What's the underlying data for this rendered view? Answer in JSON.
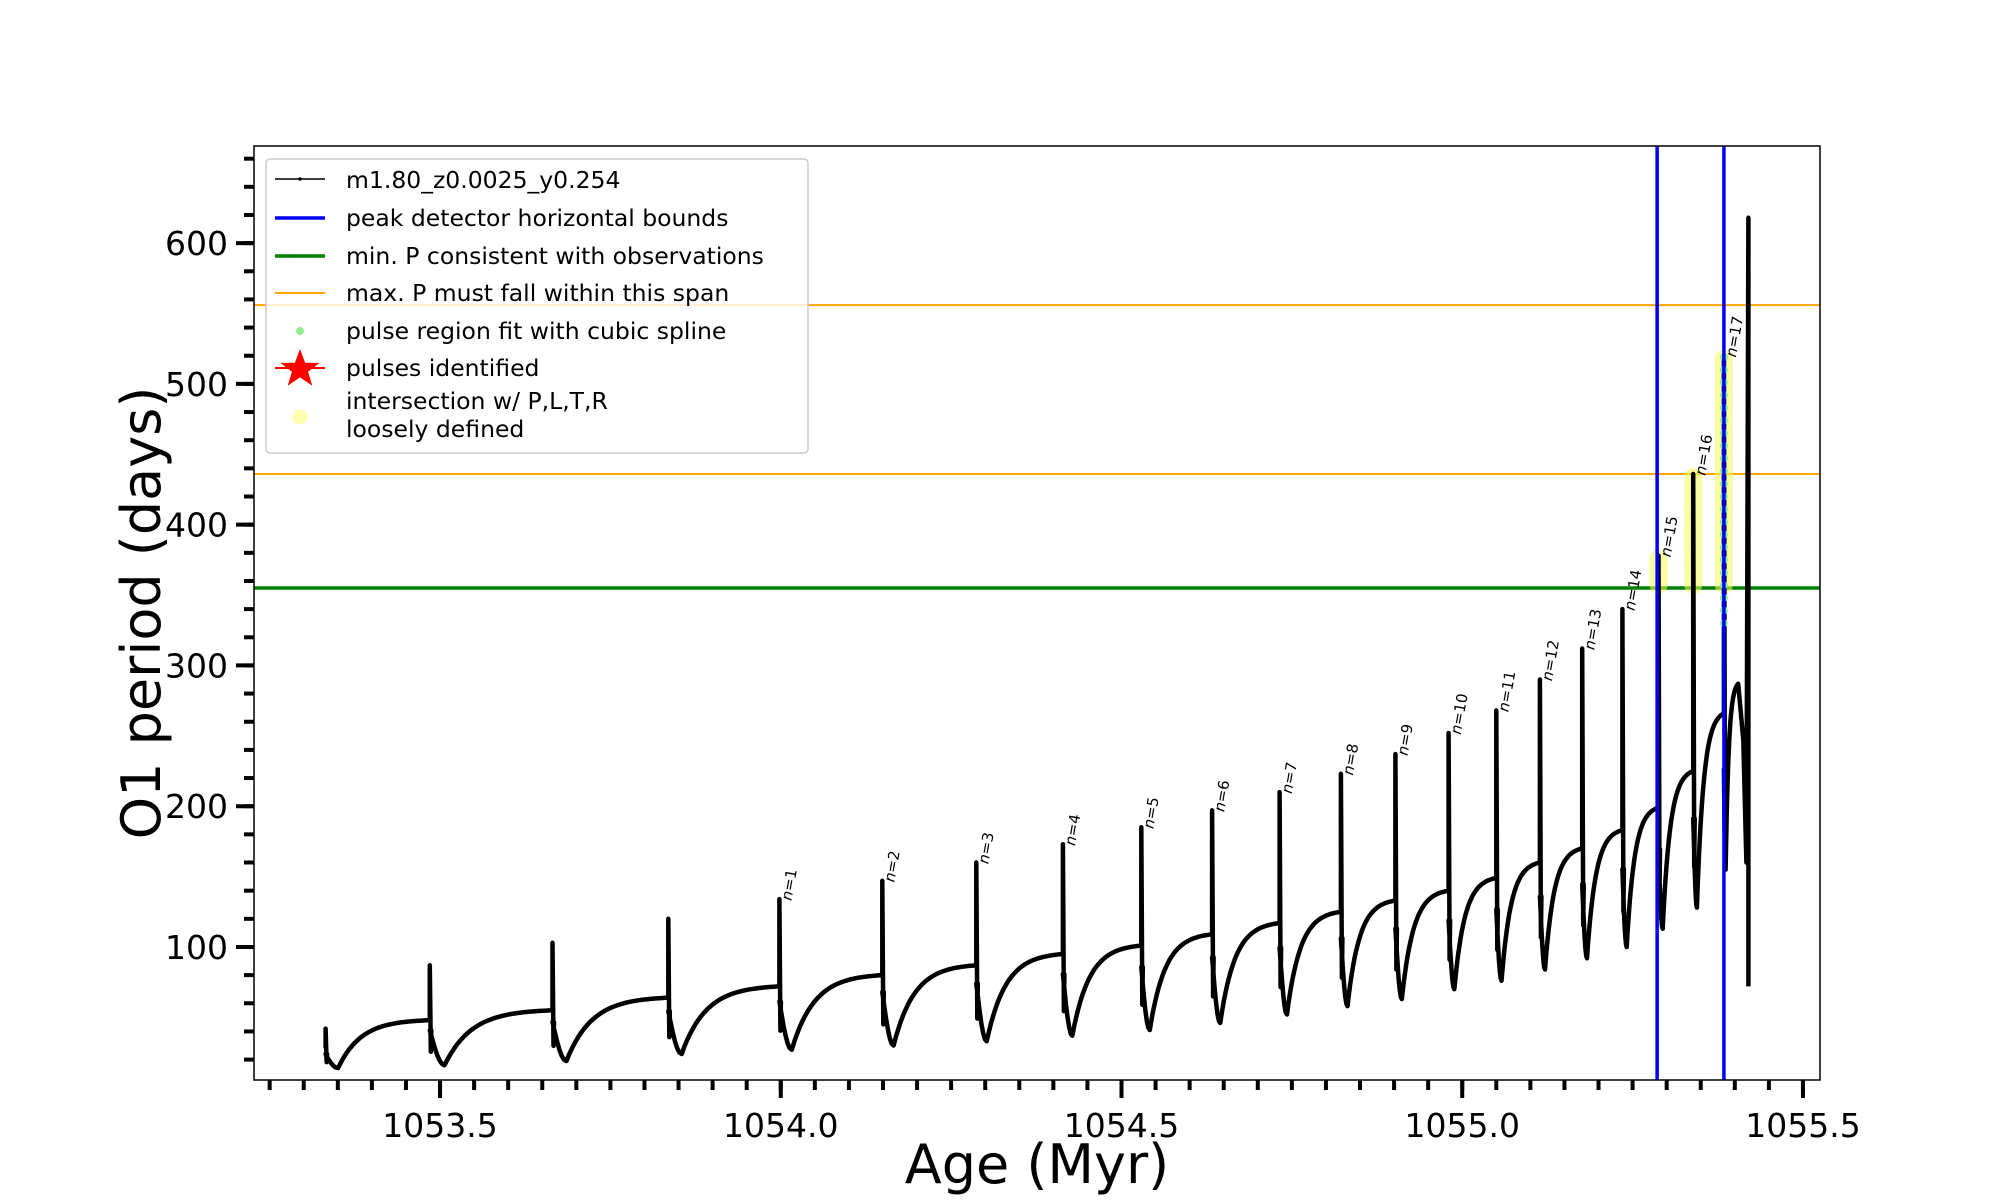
{
  "chart_data": {
    "type": "line",
    "title": "",
    "xlabel": "Age (Myr)",
    "ylabel": "O1 period (days)",
    "xlim": [
      1053.227,
      1055.525
    ],
    "ylim": [
      5.5,
      669
    ],
    "grid": false,
    "x_ticks": [
      {
        "value": 1053.5,
        "label": "1053.5"
      },
      {
        "value": 1054.0,
        "label": "1054.0"
      },
      {
        "value": 1054.5,
        "label": "1054.5"
      },
      {
        "value": 1055.0,
        "label": "1055.0"
      },
      {
        "value": 1055.5,
        "label": "1055.5"
      }
    ],
    "x_minor_step": 0.05,
    "y_ticks": [
      {
        "value": 100,
        "label": "100"
      },
      {
        "value": 200,
        "label": "200"
      },
      {
        "value": 300,
        "label": "300"
      },
      {
        "value": 400,
        "label": "400"
      },
      {
        "value": 500,
        "label": "500"
      },
      {
        "value": 600,
        "label": "600"
      }
    ],
    "y_minor_step": 20,
    "series_name": "m1.80_z0.0025_y0.254",
    "track_start": {
      "age": 1053.332,
      "period": 16
    },
    "pulses": [
      {
        "age": 1053.332,
        "peak": 42,
        "pre": 28,
        "trough": 14,
        "label": ""
      },
      {
        "age": 1053.485,
        "peak": 87,
        "pre": 48,
        "trough": 16,
        "label": ""
      },
      {
        "age": 1053.665,
        "peak": 103,
        "pre": 55,
        "trough": 19,
        "label": ""
      },
      {
        "age": 1053.835,
        "peak": 120,
        "pre": 64,
        "trough": 24,
        "label": ""
      },
      {
        "age": 1053.998,
        "peak": 134,
        "pre": 72,
        "trough": 27,
        "label": "n=1"
      },
      {
        "age": 1054.149,
        "peak": 147,
        "pre": 80,
        "trough": 30,
        "label": "n=2"
      },
      {
        "age": 1054.287,
        "peak": 160,
        "pre": 87,
        "trough": 33,
        "label": "n=3"
      },
      {
        "age": 1054.414,
        "peak": 173,
        "pre": 95,
        "trough": 37,
        "label": "n=4"
      },
      {
        "age": 1054.529,
        "peak": 185,
        "pre": 101,
        "trough": 41,
        "label": "n=5"
      },
      {
        "age": 1054.633,
        "peak": 197,
        "pre": 109,
        "trough": 46,
        "label": "n=6"
      },
      {
        "age": 1054.732,
        "peak": 210,
        "pre": 117,
        "trough": 52,
        "label": "n=7"
      },
      {
        "age": 1054.822,
        "peak": 223,
        "pre": 125,
        "trough": 58,
        "label": "n=8"
      },
      {
        "age": 1054.902,
        "peak": 237,
        "pre": 133,
        "trough": 63,
        "label": "n=9"
      },
      {
        "age": 1054.98,
        "peak": 252,
        "pre": 140,
        "trough": 70,
        "label": "n=10"
      },
      {
        "age": 1055.05,
        "peak": 268,
        "pre": 149,
        "trough": 76,
        "label": "n=11"
      },
      {
        "age": 1055.114,
        "peak": 290,
        "pre": 160,
        "trough": 84,
        "label": "n=12"
      },
      {
        "age": 1055.176,
        "peak": 312,
        "pre": 170,
        "trough": 92,
        "label": "n=13"
      },
      {
        "age": 1055.235,
        "peak": 340,
        "pre": 183,
        "trough": 100,
        "label": "n=14"
      },
      {
        "age": 1055.288,
        "peak": 378,
        "pre": 199,
        "trough": 113,
        "label": "n=15"
      },
      {
        "age": 1055.339,
        "peak": 436,
        "pre": 225,
        "trough": 128,
        "label": "n=16"
      },
      {
        "age": 1055.384,
        "peak": 520,
        "pre": 266,
        "trough": 155,
        "label": "n=17"
      }
    ],
    "final_bump": {
      "age": 1055.405,
      "period": 287
    },
    "final_spike": {
      "age": 1055.42,
      "peak": 618,
      "end": 72
    },
    "peak_detector_bounds": [
      1055.286,
      1055.384
    ],
    "min_P_observations": 355,
    "max_P_span": [
      436,
      556
    ],
    "spline_fit_regions": [
      {
        "age": 1055.384,
        "from": 330,
        "to": 520
      }
    ],
    "loosely_defined_regions": [
      {
        "age": 1055.288,
        "from": 355,
        "to": 378
      },
      {
        "age": 1055.339,
        "from": 355,
        "to": 436
      },
      {
        "age": 1055.384,
        "from": 355,
        "to": 520
      }
    ],
    "legend": {
      "position": "upper-left",
      "entries": [
        {
          "label": "m1.80_z0.0025_y0.254",
          "marker": "line-dot",
          "color": "#000000"
        },
        {
          "label": "peak detector horizontal bounds",
          "marker": "line",
          "color": "#0000ff"
        },
        {
          "label": "min. P consistent with observations",
          "marker": "line",
          "color": "#008000"
        },
        {
          "label": "max. P must fall within this span",
          "marker": "thin-line",
          "color": "#ffa500"
        },
        {
          "label": "pulse region fit with cubic spline",
          "marker": "dot",
          "color": "#90ee90"
        },
        {
          "label": "pulses identified",
          "marker": "star",
          "color": "#ff0000"
        },
        {
          "label": "intersection w/ P,L,T,R",
          "label2": "loosely defined",
          "marker": "circle",
          "color": "#ffffb0"
        }
      ]
    },
    "colors": {
      "track": "#000000",
      "bounds": "#0000ff",
      "min_p": "#008000",
      "max_p": "#ffa500",
      "spline": "#90ee90",
      "loose": "#eeff55"
    }
  }
}
